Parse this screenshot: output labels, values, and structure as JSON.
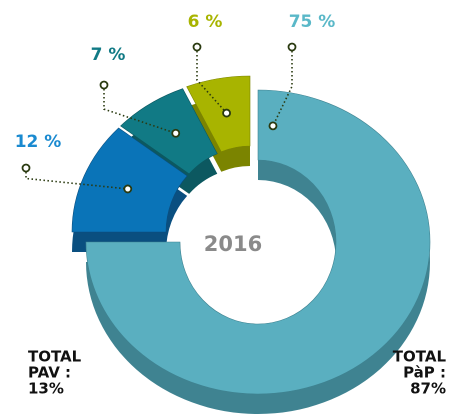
{
  "chart_data": {
    "type": "donut",
    "center_label": "2016",
    "categories": [
      null,
      null,
      null,
      null
    ],
    "values": [
      75,
      12,
      7,
      6
    ],
    "value_labels": [
      "75 %",
      "12 %",
      "7 %",
      "6 %"
    ],
    "colors": [
      "#5aafc0",
      "#0a74b8",
      "#117a85",
      "#a8b400"
    ],
    "side_colors": [
      "#3f8391",
      "#0a4f80",
      "#0c5860",
      "#7b8400"
    ],
    "label_colors": [
      "#5ab8c8",
      "#1a8ad0",
      "#117a85",
      "#a8b400"
    ],
    "annotations": [
      {
        "lines": [
          "TOTAL",
          "PAV :",
          "13%"
        ]
      },
      {
        "lines": [
          "TOTAL",
          "PàP :",
          "87%"
        ]
      }
    ]
  }
}
